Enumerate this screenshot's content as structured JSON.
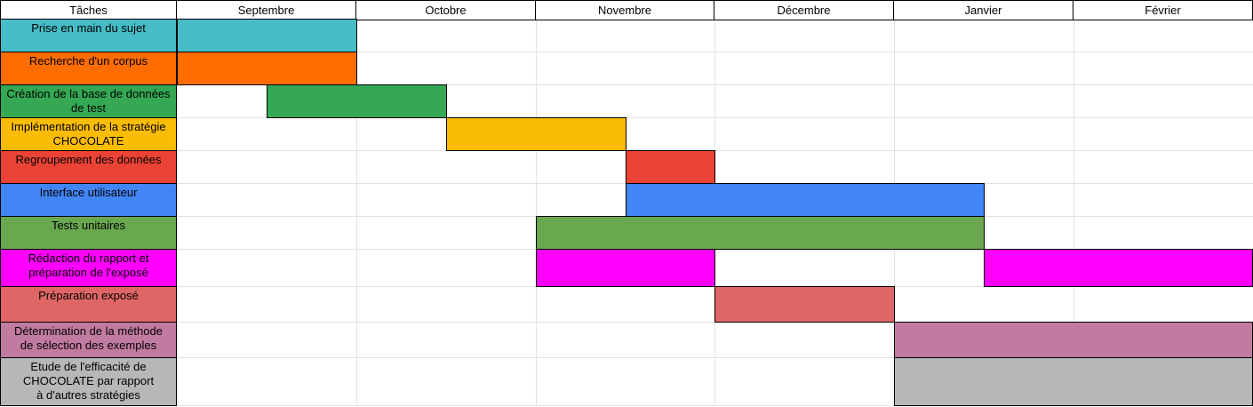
{
  "chart_data": {
    "type": "gantt",
    "header": {
      "task_column_label": "Tâches",
      "months": [
        "Septembre",
        "Octobre",
        "Novembre",
        "Décembre",
        "Janvier",
        "Février"
      ]
    },
    "tasks": [
      {
        "label": "Prise en main du sujet",
        "color": "#46bdc6",
        "segments": [
          {
            "start": "Septembre début",
            "end": "Octobre début",
            "start_month": 0,
            "end_month": 1
          }
        ]
      },
      {
        "label": "Recherche d'un corpus",
        "color": "#ff6d01",
        "segments": [
          {
            "start": "Septembre début",
            "end": "Octobre début",
            "start_month": 0,
            "end_month": 1
          }
        ]
      },
      {
        "label": "Création de la base de données de test",
        "color": "#34a853",
        "segments": [
          {
            "start": "Septembre mi",
            "end": "Octobre mi",
            "start_month": 0.5,
            "end_month": 1.5
          }
        ]
      },
      {
        "label": "Implémentation de la stratégie CHOCOLATE",
        "color": "#fbbc04",
        "segments": [
          {
            "start": "Octobre mi",
            "end": "Novembre mi",
            "start_month": 1.5,
            "end_month": 2.5
          }
        ]
      },
      {
        "label": "Regroupement des données",
        "color": "#ea4335",
        "segments": [
          {
            "start": "Novembre mi",
            "end": "Décembre début",
            "start_month": 2.5,
            "end_month": 3
          }
        ]
      },
      {
        "label": "Interface utilisateur",
        "color": "#4285f4",
        "segments": [
          {
            "start": "Novembre mi",
            "end": "Janvier mi",
            "start_month": 2.5,
            "end_month": 4.5
          }
        ]
      },
      {
        "label": "Tests unitaires",
        "color": "#6aa84f",
        "segments": [
          {
            "start": "Novembre début",
            "end": "Janvier mi",
            "start_month": 2,
            "end_month": 4.5
          }
        ]
      },
      {
        "label": "Rédaction du rapport et préparation de l'exposé",
        "color": "#ff00ff",
        "segments": [
          {
            "start": "Novembre début",
            "end": "Décembre début",
            "start_month": 2,
            "end_month": 3
          },
          {
            "start": "Janvier mi",
            "end": "Février fin",
            "start_month": 4.5,
            "end_month": 6
          }
        ]
      },
      {
        "label": "Préparation exposé",
        "color": "#e06666",
        "segments": [
          {
            "start": "Décembre début",
            "end": "Janvier début",
            "start_month": 3,
            "end_month": 4
          }
        ]
      },
      {
        "label": "Détermination de la méthode de sélection des exemples",
        "color": "#c27ba0",
        "segments": [
          {
            "start": "Janvier début",
            "end": "Février fin",
            "start_month": 4,
            "end_month": 6
          }
        ]
      },
      {
        "label": "Etude de l'efficacité de CHOCOLATE par rapport à d'autres stratégies",
        "color": "#b7b7b7",
        "segments": [
          {
            "start": "Janvier début",
            "end": "Février fin",
            "start_month": 4,
            "end_month": 6
          }
        ]
      }
    ],
    "task_label_lines": [
      [
        "Prise en main du sujet"
      ],
      [
        "Recherche d'un corpus"
      ],
      [
        "Création de la base de données",
        "de test"
      ],
      [
        "Implémentation de la stratégie",
        "CHOCOLATE"
      ],
      [
        "Regroupement des données"
      ],
      [
        "Interface utilisateur"
      ],
      [
        "Tests unitaires"
      ],
      [
        "Rédaction du rapport et",
        "préparation de l'exposé"
      ],
      [
        "Préparation exposé"
      ],
      [
        "Détermination de la méthode",
        "de sélection des exemples"
      ],
      [
        "Etude de l'efficacité de",
        "CHOCOLATE par rapport",
        "à d'autres stratégies"
      ]
    ]
  }
}
